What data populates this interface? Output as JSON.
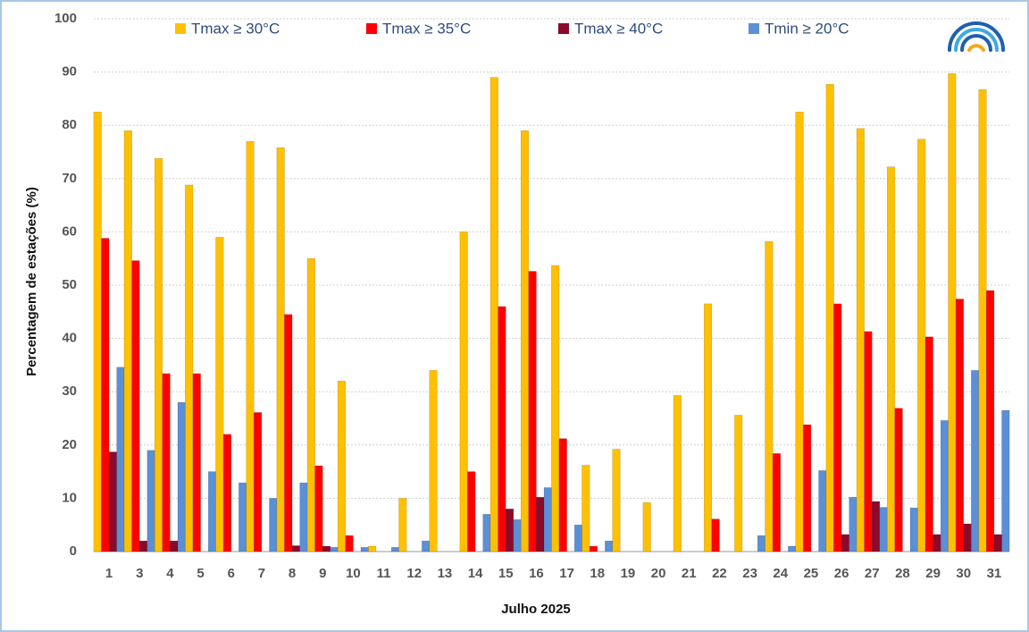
{
  "chart_data": {
    "type": "bar",
    "x_label": "Julho  2025",
    "y_label": "Percentagem de estações (%)",
    "categories": [
      "1",
      "3",
      "4",
      "5",
      "6",
      "7",
      "8",
      "9",
      "10",
      "11",
      "12",
      "13",
      "14",
      "15",
      "16",
      "17",
      "18",
      "19",
      "20",
      "21",
      "22",
      "23",
      "24",
      "25",
      "26",
      "27",
      "28",
      "29",
      "30",
      "31"
    ],
    "series": [
      {
        "name": "Tmax ≥ 30°C",
        "color": "#ffc000",
        "values": [
          82.5,
          79,
          73.8,
          68.8,
          59,
          77,
          75.8,
          55,
          32,
          1,
          10,
          34,
          60,
          89,
          79,
          53.7,
          16.2,
          19.2,
          9.2,
          29.3,
          46.5,
          25.6,
          58.2,
          82.5,
          87.7,
          79.4,
          72.2,
          77.4,
          89.7,
          86.7
        ]
      },
      {
        "name": "Tmax ≥ 35°C",
        "color": "#ff0000",
        "values": [
          58.8,
          54.6,
          33.4,
          33.4,
          22,
          26.1,
          44.5,
          16.1,
          3,
          0,
          0,
          0,
          15,
          46,
          52.6,
          21.2,
          1,
          0,
          0,
          0,
          6.1,
          0,
          18.4,
          23.8,
          46.5,
          41.3,
          26.9,
          40.3,
          47.4,
          49
        ]
      },
      {
        "name": "Tmax ≥ 40°C",
        "color": "#8b0a2a",
        "values": [
          18.7,
          2,
          2,
          0,
          0,
          0,
          1.1,
          1,
          0,
          0,
          0,
          0,
          0,
          8,
          10.2,
          0,
          0,
          0,
          0,
          0,
          0,
          0,
          0,
          0,
          3.2,
          9.4,
          0,
          3.2,
          5.2,
          3.2
        ]
      },
      {
        "name": "Tmin ≥ 20°C",
        "color": "#5b8fd6",
        "values": [
          34.6,
          19,
          28,
          15,
          12.9,
          10,
          12.9,
          0.8,
          0.8,
          0.8,
          2,
          0,
          7,
          6,
          12,
          5,
          2,
          0,
          0,
          0,
          0,
          3,
          1,
          15.2,
          10.2,
          8.3,
          8.2,
          24.6,
          34,
          26.5
        ]
      }
    ],
    "ylim": [
      0,
      100
    ],
    "yticks": [
      0,
      10,
      20,
      30,
      40,
      50,
      60,
      70,
      80,
      90,
      100
    ],
    "grid": true
  }
}
